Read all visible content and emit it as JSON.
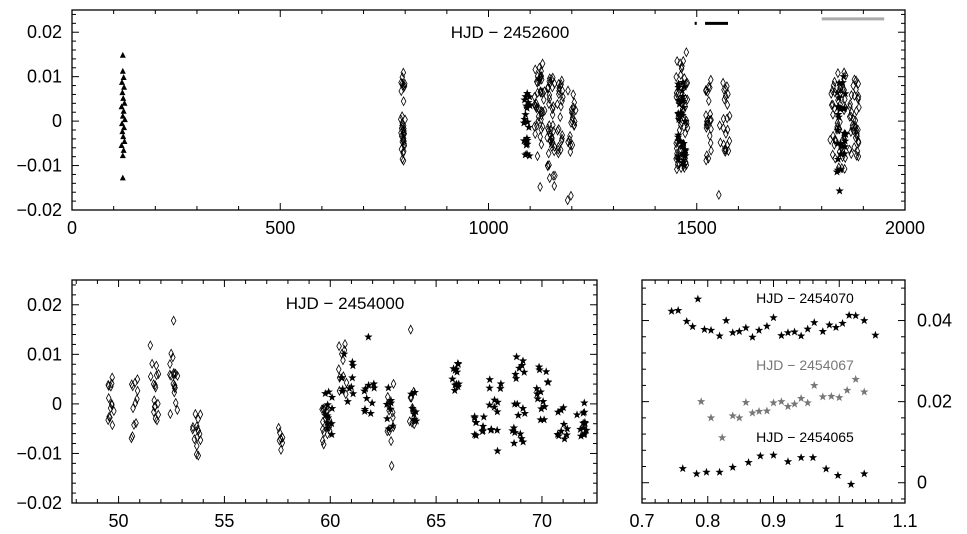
{
  "chart_data": [
    {
      "id": "top",
      "type": "scatter",
      "annotation": "HJD − 2452600",
      "xlim": [
        0,
        2000
      ],
      "ylim": [
        -0.02,
        0.025
      ],
      "xticks": [
        0,
        500,
        1000,
        1500,
        2000
      ],
      "xtick_labels": [
        "0",
        "500",
        "1000",
        "1500",
        "2000"
      ],
      "yticks": [
        -0.02,
        -0.01,
        0,
        0.01,
        0.02
      ],
      "ytick_labels": [
        "−0.02",
        "−0.01",
        "0",
        "0.01",
        "0.02"
      ],
      "grid": false,
      "bar_markers": [
        {
          "x": [
            1495,
            1500
          ],
          "y": 0.022,
          "color": "#000000"
        },
        {
          "x": [
            1520,
            1575
          ],
          "y": 0.022,
          "color": "#000000"
        },
        {
          "x": [
            1800,
            1950
          ],
          "y": 0.023,
          "color": "#aaaaaa"
        }
      ],
      "series": [
        {
          "marker": "triangle",
          "points": [
            [
              122,
              0.0148
            ],
            [
              122,
              0.0112
            ],
            [
              124,
              0.0098
            ],
            [
              120,
              0.0087
            ],
            [
              125,
              0.0076
            ],
            [
              121,
              0.0064
            ],
            [
              123,
              0.0051
            ],
            [
              126,
              0.004
            ],
            [
              119,
              0.0032
            ],
            [
              124,
              0.0022
            ],
            [
              122,
              0.0011
            ],
            [
              127,
              0.0003
            ],
            [
              120,
              -0.0006
            ],
            [
              125,
              -0.0015
            ],
            [
              121,
              -0.0024
            ],
            [
              123,
              -0.0035
            ],
            [
              126,
              -0.0046
            ],
            [
              119,
              -0.0055
            ],
            [
              124,
              -0.0066
            ],
            [
              122,
              -0.0078
            ],
            [
              122,
              -0.0128
            ]
          ]
        },
        {
          "marker": "diamond",
          "clusters": [
            {
              "x": [
                788,
                800
              ],
              "y": [
                -0.009,
                0.011
              ],
              "n": 34
            },
            {
              "x": [
                1110,
                1135
              ],
              "y": [
                -0.008,
                0.013
              ],
              "n": 42
            },
            {
              "x": [
                1140,
                1160
              ],
              "y": [
                -0.013,
                0.01
              ],
              "n": 40
            },
            {
              "x": [
                1165,
                1180
              ],
              "y": [
                -0.008,
                0.01
              ],
              "n": 22
            },
            {
              "x": [
                1190,
                1210
              ],
              "y": [
                -0.007,
                0.007
              ],
              "n": 20
            },
            {
              "x": [
                1450,
                1478
              ],
              "y": [
                -0.012,
                0.014
              ],
              "n": 50
            },
            {
              "x": [
                1520,
                1535
              ],
              "y": [
                -0.009,
                0.01
              ],
              "n": 24
            },
            {
              "x": [
                1555,
                1580
              ],
              "y": [
                -0.007,
                0.009
              ],
              "n": 24
            },
            {
              "x": [
                1820,
                1858
              ],
              "y": [
                -0.011,
                0.011
              ],
              "n": 48
            },
            {
              "x": [
                1865,
                1890
              ],
              "y": [
                -0.009,
                0.01
              ],
              "n": 38
            }
          ],
          "points": [
            [
              1124,
              -0.0148
            ],
            [
              1190,
              -0.0178
            ],
            [
              1198,
              -0.0168
            ],
            [
              1158,
              -0.0146
            ],
            [
              1475,
              0.0155
            ],
            [
              1553,
              -0.0166
            ]
          ]
        },
        {
          "marker": "star",
          "clusters": [
            {
              "x": [
                1085,
                1100
              ],
              "y": [
                -0.008,
                0.008
              ],
              "n": 22
            },
            {
              "x": [
                1455,
                1475
              ],
              "y": [
                -0.01,
                0.01
              ],
              "n": 34
            },
            {
              "x": [
                1835,
                1858
              ],
              "y": [
                -0.012,
                0.011
              ],
              "n": 28
            }
          ],
          "points": [
            [
              1843,
              -0.0157
            ]
          ]
        }
      ]
    },
    {
      "id": "bottom-left",
      "type": "scatter",
      "annotation": "HJD − 2454000",
      "xlim": [
        47.8,
        72.6
      ],
      "ylim": [
        -0.02,
        0.025
      ],
      "xticks": [
        50,
        55,
        60,
        65,
        70
      ],
      "xtick_labels": [
        "50",
        "55",
        "60",
        "65",
        "70"
      ],
      "yticks": [
        -0.02,
        -0.01,
        0,
        0.01,
        0.02
      ],
      "ytick_labels": [
        "−0.02",
        "−0.01",
        "0",
        "0.01",
        "0.02"
      ],
      "grid": false,
      "series": [
        {
          "marker": "diamond",
          "clusters": [
            {
              "x": [
                49.5,
                49.8
              ],
              "y": [
                -0.0045,
                0.0062
              ],
              "n": 14
            },
            {
              "x": [
                50.6,
                50.9
              ],
              "y": [
                -0.0075,
                0.0055
              ],
              "n": 12
            },
            {
              "x": [
                51.5,
                51.9
              ],
              "y": [
                -0.004,
                0.0085
              ],
              "n": 16
            },
            {
              "x": [
                52.4,
                52.8
              ],
              "y": [
                -0.0025,
                0.0105
              ],
              "n": 16
            },
            {
              "x": [
                53.5,
                53.9
              ],
              "y": [
                -0.011,
                -0.0005
              ],
              "n": 14
            },
            {
              "x": [
                57.5,
                57.8
              ],
              "y": [
                -0.0105,
                -0.0045
              ],
              "n": 7
            },
            {
              "x": [
                59.6,
                60.0
              ],
              "y": [
                -0.0082,
                0.0002
              ],
              "n": 18
            },
            {
              "x": [
                60.4,
                60.9
              ],
              "y": [
                0.001,
                0.0125
              ],
              "n": 10
            },
            {
              "x": [
                62.6,
                63.0
              ],
              "y": [
                -0.0085,
                0.0048
              ],
              "n": 10
            },
            {
              "x": [
                63.7,
                64.0
              ],
              "y": [
                -0.0045,
                0.0035
              ],
              "n": 8
            }
          ],
          "points": [
            [
              51.5,
              0.0118
            ],
            [
              52.6,
              0.0168
            ],
            [
              53.7,
              -0.0045
            ],
            [
              63.8,
              0.015
            ],
            [
              62.9,
              -0.0125
            ],
            [
              60.6,
              0.0088
            ],
            [
              52.7,
              0.0002
            ]
          ]
        },
        {
          "marker": "star",
          "clusters": [
            {
              "x": [
                59.7,
                60.1
              ],
              "y": [
                -0.007,
                0.0035
              ],
              "n": 12
            },
            {
              "x": [
                60.5,
                61.1
              ],
              "y": [
                -0.0005,
                0.0105
              ],
              "n": 12
            },
            {
              "x": [
                61.6,
                62.1
              ],
              "y": [
                -0.002,
                0.0055
              ],
              "n": 10
            },
            {
              "x": [
                62.6,
                63.1
              ],
              "y": [
                -0.0055,
                0.004
              ],
              "n": 8
            },
            {
              "x": [
                63.8,
                64.1
              ],
              "y": [
                -0.0035,
                0.0025
              ],
              "n": 8
            },
            {
              "x": [
                65.7,
                66.1
              ],
              "y": [
                0.0025,
                0.0085
              ],
              "n": 12
            },
            {
              "x": [
                66.8,
                67.3
              ],
              "y": [
                -0.0065,
                -0.0015
              ],
              "n": 10
            },
            {
              "x": [
                67.5,
                68.1
              ],
              "y": [
                -0.0055,
                0.0055
              ],
              "n": 12
            },
            {
              "x": [
                68.6,
                69.2
              ],
              "y": [
                -0.0085,
                0.009
              ],
              "n": 18
            },
            {
              "x": [
                69.7,
                70.3
              ],
              "y": [
                -0.0045,
                0.0075
              ],
              "n": 14
            },
            {
              "x": [
                70.7,
                71.2
              ],
              "y": [
                -0.0075,
                -0.0005
              ],
              "n": 10
            },
            {
              "x": [
                71.6,
                72.1
              ],
              "y": [
                -0.0065,
                0.0005
              ],
              "n": 12
            }
          ],
          "points": [
            [
              61.8,
              0.0135
            ],
            [
              68.8,
              0.0095
            ],
            [
              67.9,
              -0.0095
            ],
            [
              72.0,
              0.0002
            ],
            [
              70.2,
              0.0065
            ]
          ]
        }
      ]
    },
    {
      "id": "bottom-right",
      "type": "scatter",
      "annotations": [
        {
          "text": "HJD − 2454070",
          "color": "#000000"
        },
        {
          "text": "HJD − 2454067",
          "color": "#777777"
        },
        {
          "text": "HJD − 2454065",
          "color": "#000000"
        }
      ],
      "xlim": [
        0.7,
        1.1
      ],
      "ylim": [
        -0.005,
        0.05
      ],
      "xticks": [
        0.7,
        0.8,
        0.9,
        1.0,
        1.1
      ],
      "xtick_labels": [
        "0.7",
        "0.8",
        "0.9",
        "1",
        "1.1"
      ],
      "yticks": [
        0,
        0.02,
        0.04
      ],
      "ytick_labels": [
        "0",
        "0.02",
        "0.04"
      ],
      "y_axis_side": "right",
      "grid": false,
      "series": [
        {
          "label_index": 0,
          "marker": "star",
          "color": "#000000",
          "points": [
            [
              0.745,
              0.0423
            ],
            [
              0.755,
              0.0425
            ],
            [
              0.768,
              0.0398
            ],
            [
              0.777,
              0.0385
            ],
            [
              0.785,
              0.0453
            ],
            [
              0.795,
              0.0378
            ],
            [
              0.805,
              0.0376
            ],
            [
              0.818,
              0.0362
            ],
            [
              0.828,
              0.04
            ],
            [
              0.838,
              0.037
            ],
            [
              0.848,
              0.0373
            ],
            [
              0.858,
              0.0382
            ],
            [
              0.868,
              0.0359
            ],
            [
              0.878,
              0.0376
            ],
            [
              0.89,
              0.0386
            ],
            [
              0.9,
              0.0407
            ],
            [
              0.912,
              0.0363
            ],
            [
              0.922,
              0.037
            ],
            [
              0.932,
              0.0372
            ],
            [
              0.942,
              0.0362
            ],
            [
              0.952,
              0.0379
            ],
            [
              0.962,
              0.0395
            ],
            [
              0.975,
              0.0373
            ],
            [
              0.985,
              0.0389
            ],
            [
              0.995,
              0.0383
            ],
            [
              1.005,
              0.0393
            ],
            [
              1.015,
              0.0413
            ],
            [
              1.025,
              0.0412
            ],
            [
              1.038,
              0.04
            ],
            [
              1.055,
              0.0364
            ]
          ]
        },
        {
          "label_index": 1,
          "marker": "star",
          "color": "#777777",
          "points": [
            [
              0.79,
              0.02
            ],
            [
              0.805,
              0.016
            ],
            [
              0.822,
              0.0111
            ],
            [
              0.838,
              0.0165
            ],
            [
              0.848,
              0.016
            ],
            [
              0.858,
              0.0198
            ],
            [
              0.868,
              0.0172
            ],
            [
              0.878,
              0.0176
            ],
            [
              0.89,
              0.0177
            ],
            [
              0.9,
              0.0197
            ],
            [
              0.912,
              0.02
            ],
            [
              0.922,
              0.0188
            ],
            [
              0.932,
              0.0194
            ],
            [
              0.942,
              0.0208
            ],
            [
              0.952,
              0.0197
            ],
            [
              0.962,
              0.024
            ],
            [
              0.975,
              0.0212
            ],
            [
              0.988,
              0.0213
            ],
            [
              1.0,
              0.021
            ],
            [
              1.012,
              0.0228
            ],
            [
              1.025,
              0.0255
            ],
            [
              1.038,
              0.0224
            ]
          ]
        },
        {
          "label_index": 2,
          "marker": "star",
          "color": "#000000",
          "points": [
            [
              0.762,
              0.0035
            ],
            [
              0.783,
              0.0022
            ],
            [
              0.798,
              0.0026
            ],
            [
              0.818,
              0.0026
            ],
            [
              0.838,
              0.0038
            ],
            [
              0.862,
              0.005
            ],
            [
              0.88,
              0.0066
            ],
            [
              0.9,
              0.0068
            ],
            [
              0.922,
              0.0052
            ],
            [
              0.942,
              0.0062
            ],
            [
              0.96,
              0.0062
            ],
            [
              0.98,
              0.0034
            ],
            [
              0.998,
              0.0018
            ],
            [
              1.018,
              -0.0004
            ],
            [
              1.038,
              0.0022
            ]
          ]
        }
      ]
    }
  ]
}
